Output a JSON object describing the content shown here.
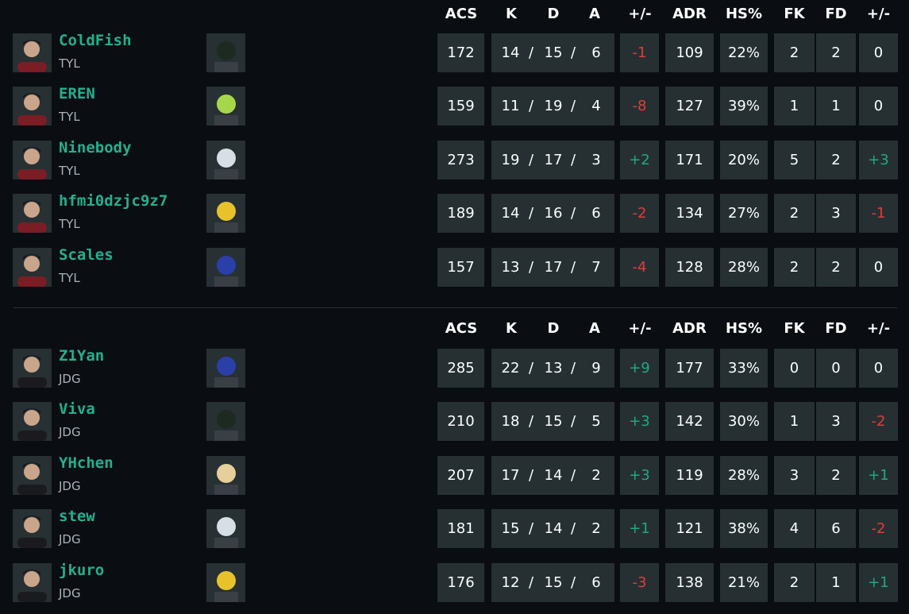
{
  "headers": [
    "ACS",
    "K",
    "D",
    "A",
    "+/-",
    "ADR",
    "HS%",
    "FK",
    "FD",
    "+/-"
  ],
  "colors": {
    "name": "#23b08f",
    "negative": "#e23b3b",
    "positive": "#21a886",
    "cell_bg": "#263033",
    "background": "#0a0d12"
  },
  "teams": [
    {
      "players": [
        {
          "name": "ColdFish",
          "team": "TYL",
          "agent_icon": "viper-agent-icon",
          "acs": "172",
          "k": "14",
          "d": "15",
          "a": "6",
          "pm": "-1",
          "adr": "109",
          "hs": "22%",
          "fk": "2",
          "fd": "2",
          "fkpm": "0"
        },
        {
          "name": "EREN",
          "team": "TYL",
          "agent_icon": "gekko-agent-icon",
          "acs": "159",
          "k": "11",
          "d": "19",
          "a": "4",
          "pm": "-8",
          "adr": "127",
          "hs": "39%",
          "fk": "1",
          "fd": "1",
          "fkpm": "0"
        },
        {
          "name": "Ninebody",
          "team": "TYL",
          "agent_icon": "jett-agent-icon",
          "acs": "273",
          "k": "19",
          "d": "17",
          "a": "3",
          "pm": "+2",
          "adr": "171",
          "hs": "20%",
          "fk": "5",
          "fd": "2",
          "fkpm": "+3"
        },
        {
          "name": "hfmi0dzjc9z7",
          "team": "TYL",
          "agent_icon": "killjoy-agent-icon",
          "acs": "189",
          "k": "14",
          "d": "16",
          "a": "6",
          "pm": "-2",
          "adr": "134",
          "hs": "27%",
          "fk": "2",
          "fd": "3",
          "fkpm": "-1"
        },
        {
          "name": "Scales",
          "team": "TYL",
          "agent_icon": "kayo-agent-icon",
          "acs": "157",
          "k": "13",
          "d": "17",
          "a": "7",
          "pm": "-4",
          "adr": "128",
          "hs": "28%",
          "fk": "2",
          "fd": "2",
          "fkpm": "0"
        }
      ]
    },
    {
      "players": [
        {
          "name": "Z1Yan",
          "team": "JDG",
          "agent_icon": "kayo-agent-icon",
          "acs": "285",
          "k": "22",
          "d": "13",
          "a": "9",
          "pm": "+9",
          "adr": "177",
          "hs": "33%",
          "fk": "0",
          "fd": "0",
          "fkpm": "0"
        },
        {
          "name": "Viva",
          "team": "JDG",
          "agent_icon": "viper-agent-icon",
          "acs": "210",
          "k": "18",
          "d": "15",
          "a": "5",
          "pm": "+3",
          "adr": "142",
          "hs": "30%",
          "fk": "1",
          "fd": "3",
          "fkpm": "-2"
        },
        {
          "name": "YHchen",
          "team": "JDG",
          "agent_icon": "blonde-agent-icon",
          "acs": "207",
          "k": "17",
          "d": "14",
          "a": "2",
          "pm": "+3",
          "adr": "119",
          "hs": "28%",
          "fk": "3",
          "fd": "2",
          "fkpm": "+1"
        },
        {
          "name": "stew",
          "team": "JDG",
          "agent_icon": "jett-agent-icon",
          "acs": "181",
          "k": "15",
          "d": "14",
          "a": "2",
          "pm": "+1",
          "adr": "121",
          "hs": "38%",
          "fk": "4",
          "fd": "6",
          "fkpm": "-2"
        },
        {
          "name": "jkuro",
          "team": "JDG",
          "agent_icon": "killjoy-agent-icon",
          "acs": "176",
          "k": "12",
          "d": "15",
          "a": "6",
          "pm": "-3",
          "adr": "138",
          "hs": "21%",
          "fk": "2",
          "fd": "1",
          "fkpm": "+1"
        }
      ]
    }
  ]
}
